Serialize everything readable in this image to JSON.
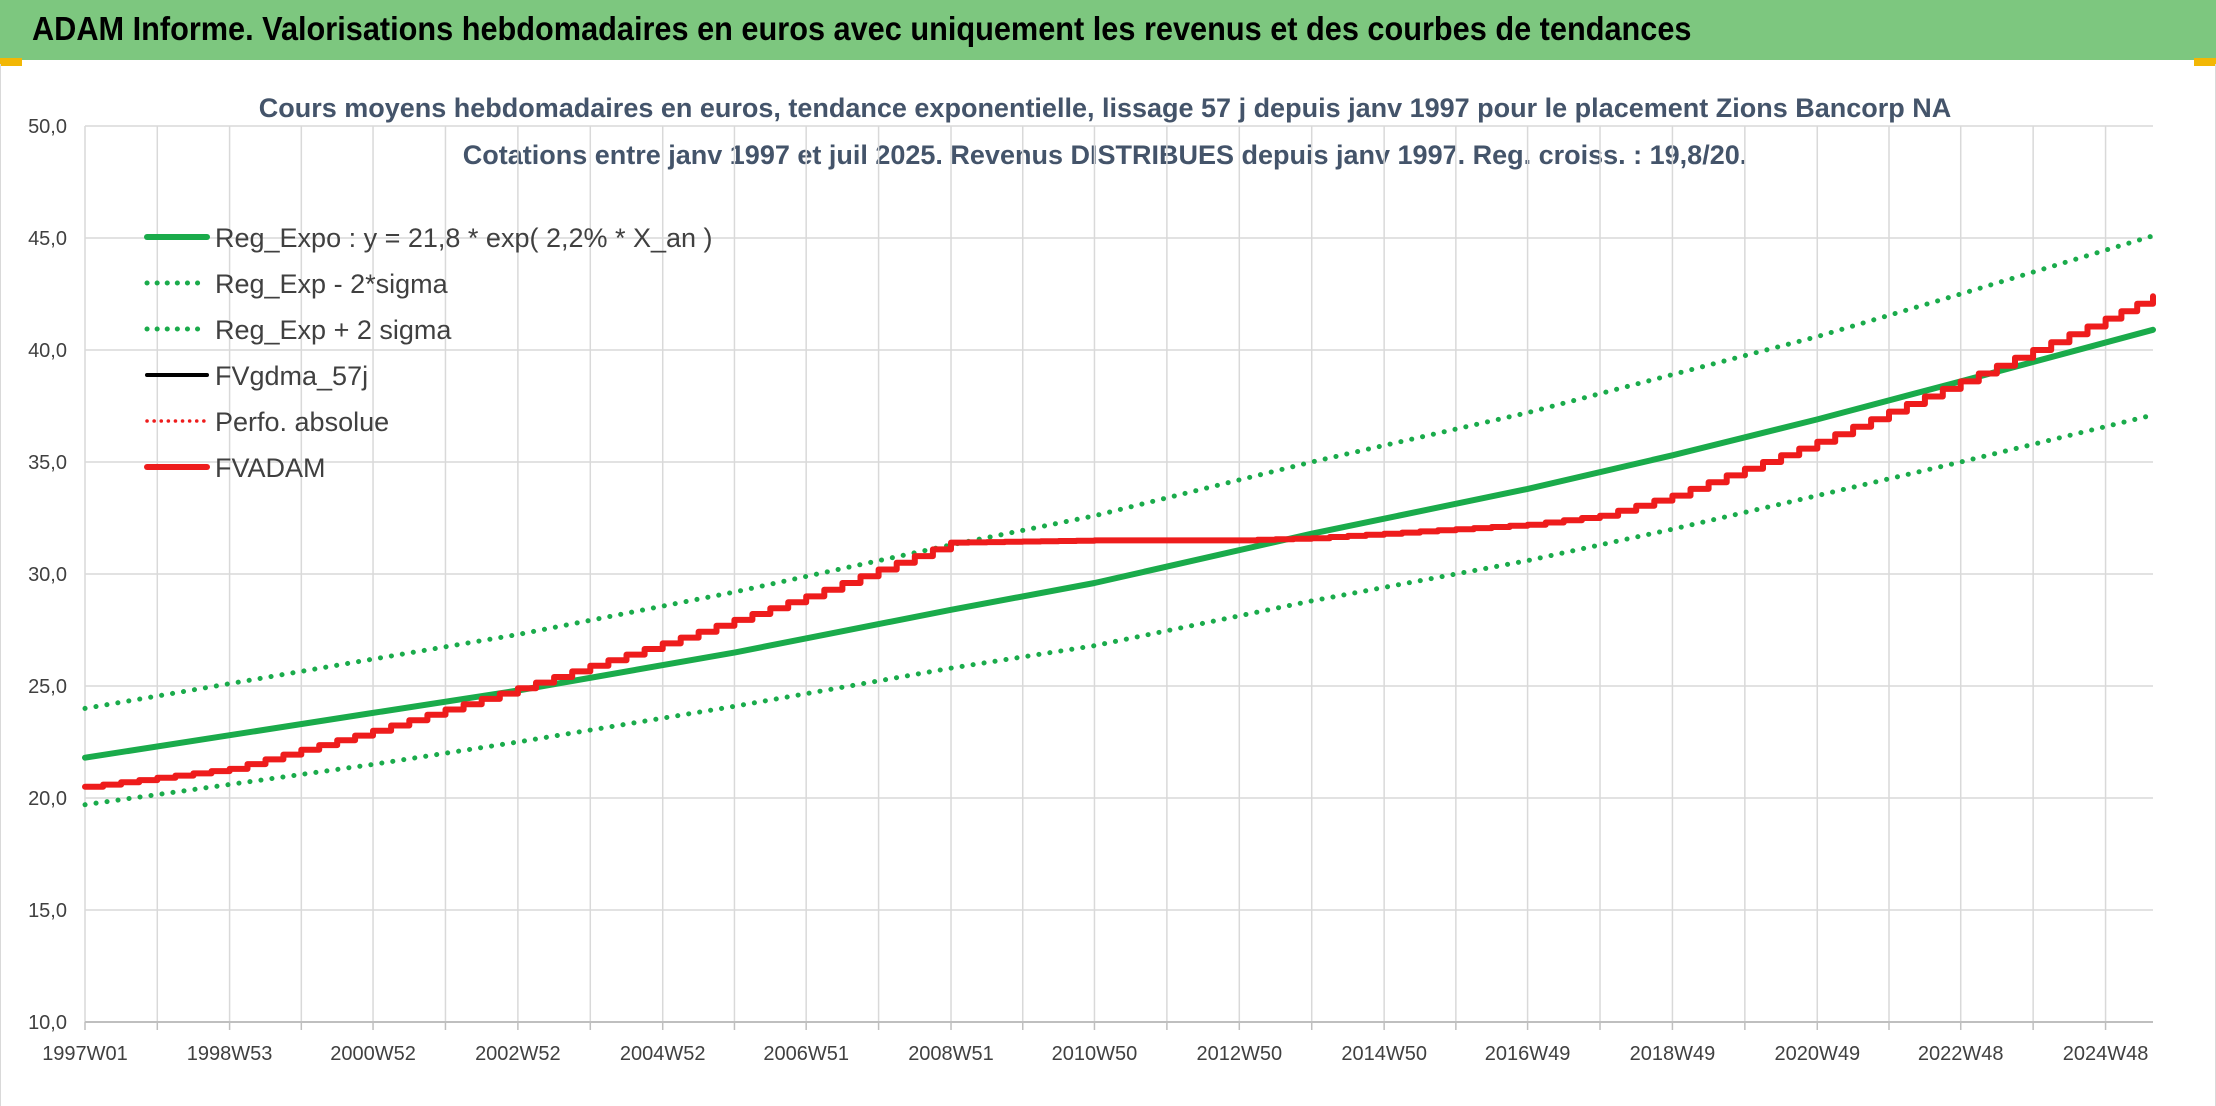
{
  "banner": {
    "title": "ADAM Informe. Valorisations hebdomadaires en euros avec uniquement les revenus et des courbes de tendances"
  },
  "colors": {
    "banner_bg": "#7dc77f",
    "trend_green": "#1aab4b",
    "fvadam_red": "#ee1c1c",
    "black_series": "#000000",
    "grid": "#d9d9d9",
    "title_text": "#44546a"
  },
  "chart_data": {
    "type": "line",
    "title_lines": [
      "Cours moyens hebdomadaires en euros, tendance exponentielle, lissage 57 j depuis janv 1997 pour le placement Zions Bancorp NA",
      "Cotations entre janv 1997 et juil 2025. Revenus DISTRIBUES depuis janv 1997. Reg. croiss. : 19,8/20."
    ],
    "x_tick_labels": [
      "1997W01",
      "1998W53",
      "2000W52",
      "2002W52",
      "2004W52",
      "2006W51",
      "2008W51",
      "2010W50",
      "2012W50",
      "2014W50",
      "2016W49",
      "2018W49",
      "2020W49",
      "2022W48",
      "2024W48"
    ],
    "x_range": [
      "1997W01",
      "2025W30"
    ],
    "y_tick_labels": [
      "10,0",
      "15,0",
      "20,0",
      "25,0",
      "30,0",
      "35,0",
      "40,0",
      "45,0",
      "50,0"
    ],
    "ylim": [
      10,
      50
    ],
    "grid": true,
    "legend_position": "top-left",
    "legend": [
      {
        "label": "Reg_Expo : y = 21,8 * exp( 2,2% *  X_an )",
        "style": "solid-green"
      },
      {
        "label": "Reg_Exp - 2*sigma",
        "style": "dotted-green"
      },
      {
        "label": "Reg_Exp + 2 sigma",
        "style": "dotted-green"
      },
      {
        "label": "FVgdma_57j",
        "style": "solid-black"
      },
      {
        "label": "Perfo. absolue",
        "style": "dotted-red"
      },
      {
        "label": "FVADAM",
        "style": "solid-red"
      }
    ],
    "series": [
      {
        "name": "Reg_Expo : y = 21,8 * exp( 2,2% *  X_an )",
        "x": [
          "1997W01",
          "2000W52",
          "2002W52",
          "2005W52",
          "2008W51",
          "2010W50",
          "2013W50",
          "2016W49",
          "2018W49",
          "2020W49",
          "2022W48",
          "2025W30"
        ],
        "values": [
          21.8,
          23.8,
          24.8,
          26.5,
          28.4,
          29.6,
          31.8,
          33.8,
          35.3,
          36.9,
          38.6,
          40.9
        ]
      },
      {
        "name": "Reg_Exp - 2*sigma",
        "x": [
          "1997W01",
          "2000W52",
          "2002W52",
          "2005W52",
          "2008W51",
          "2010W50",
          "2013W50",
          "2016W49",
          "2018W49",
          "2020W49",
          "2022W48",
          "2025W30"
        ],
        "values": [
          19.7,
          21.5,
          22.5,
          24.1,
          25.8,
          26.8,
          28.8,
          30.6,
          32.0,
          33.5,
          35.0,
          37.1
        ]
      },
      {
        "name": "Reg_Exp + 2 sigma",
        "x": [
          "1997W01",
          "2000W52",
          "2002W52",
          "2005W52",
          "2008W51",
          "2010W50",
          "2013W50",
          "2016W49",
          "2018W49",
          "2020W49",
          "2022W48",
          "2025W30"
        ],
        "values": [
          24.0,
          26.2,
          27.3,
          29.2,
          31.3,
          32.6,
          35.0,
          37.2,
          38.9,
          40.6,
          42.5,
          45.1
        ]
      },
      {
        "name": "FVADAM",
        "x": [
          "1997W01",
          "1998W53",
          "2000W52",
          "2002W52",
          "2004W52",
          "2006W51",
          "2008W51",
          "2010W50",
          "2012W50",
          "2013W50",
          "2014W50",
          "2016W49",
          "2017W49",
          "2018W49",
          "2020W49",
          "2022W48",
          "2024W48",
          "2025W30"
        ],
        "values": [
          20.5,
          21.3,
          23.0,
          24.9,
          26.9,
          29.0,
          31.4,
          31.5,
          31.5,
          31.6,
          31.8,
          32.2,
          32.6,
          33.5,
          35.9,
          38.6,
          41.4,
          42.4
        ]
      }
    ]
  }
}
